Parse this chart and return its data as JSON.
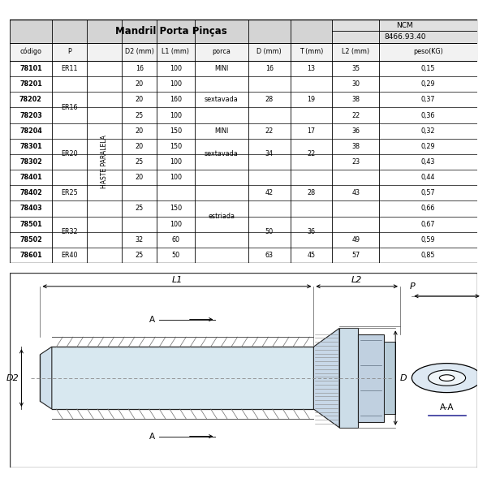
{
  "title": "Mandril Porta Pinças",
  "ncm_label": "NCM",
  "ncm_value": "8466.93.40",
  "bg_color": "#ffffff",
  "rows": [
    {
      "codigo": "78101",
      "P": "ER11",
      "D2": "16",
      "L1": "100",
      "porca": "MINI",
      "D": "16",
      "T": "13",
      "L2": "35",
      "peso": "0,15"
    },
    {
      "codigo": "78201",
      "P": "",
      "D2": "20",
      "L1": "100",
      "porca": "",
      "D": "",
      "T": "",
      "L2": "30",
      "peso": "0,29"
    },
    {
      "codigo": "78202",
      "P": "ER16",
      "D2": "20",
      "L1": "160",
      "porca": "sextavada",
      "D": "28",
      "T": "19",
      "L2": "38",
      "peso": "0,37"
    },
    {
      "codigo": "78203",
      "P": "",
      "D2": "25",
      "L1": "100",
      "porca": "",
      "D": "",
      "T": "",
      "L2": "22",
      "peso": "0,36"
    },
    {
      "codigo": "78204",
      "P": "",
      "D2": "20",
      "L1": "150",
      "porca": "MINI",
      "D": "22",
      "T": "17",
      "L2": "36",
      "peso": "0,32"
    },
    {
      "codigo": "78301",
      "P": "ER20",
      "D2": "20",
      "L1": "150",
      "porca": "",
      "D": "",
      "T": "",
      "L2": "38",
      "peso": "0,29"
    },
    {
      "codigo": "78302",
      "P": "",
      "D2": "25",
      "L1": "100",
      "porca": "sextavada",
      "D": "34",
      "T": "22",
      "L2": "23",
      "peso": "0,43"
    },
    {
      "codigo": "78401",
      "P": "",
      "D2": "20",
      "L1": "100",
      "porca": "",
      "D": "",
      "T": "",
      "L2": "",
      "peso": "0,44"
    },
    {
      "codigo": "78402",
      "P": "ER25",
      "D2": "",
      "L1": "",
      "porca": "",
      "D": "42",
      "T": "28",
      "L2": "43",
      "peso": "0,57"
    },
    {
      "codigo": "78403",
      "P": "",
      "D2": "25",
      "L1": "150",
      "porca": "estriada",
      "D": "",
      "T": "",
      "L2": "",
      "peso": "0,66"
    },
    {
      "codigo": "78501",
      "P": "ER32",
      "D2": "",
      "L1": "100",
      "porca": "",
      "D": "",
      "T": "",
      "L2": "",
      "peso": "0,67"
    },
    {
      "codigo": "78502",
      "P": "",
      "D2": "32",
      "L1": "60",
      "porca": "",
      "D": "50",
      "T": "36",
      "L2": "49",
      "peso": "0,59"
    },
    {
      "codigo": "78601",
      "P": "ER40",
      "D2": "25",
      "L1": "50",
      "porca": "",
      "D": "63",
      "T": "45",
      "L2": "57",
      "peso": "0,85"
    }
  ],
  "p_groups": [
    [
      0,
      0,
      "ER11"
    ],
    [
      1,
      4,
      "ER16"
    ],
    [
      5,
      6,
      "ER20"
    ],
    [
      7,
      9,
      "ER25"
    ],
    [
      10,
      11,
      "ER32"
    ],
    [
      12,
      12,
      "ER40"
    ]
  ],
  "porca_groups": [
    [
      0,
      0,
      "MINI"
    ],
    [
      1,
      3,
      "sextavada"
    ],
    [
      4,
      4,
      "MINI"
    ],
    [
      5,
      6,
      "sextavada"
    ],
    [
      7,
      12,
      "estriada"
    ]
  ],
  "dt_groups": [
    [
      0,
      0,
      "16",
      "13"
    ],
    [
      1,
      3,
      "28",
      "19"
    ],
    [
      4,
      4,
      "22",
      "17"
    ],
    [
      5,
      6,
      "34",
      "22"
    ],
    [
      7,
      9,
      "42",
      "28"
    ],
    [
      10,
      11,
      "50",
      "36"
    ],
    [
      12,
      12,
      "63",
      "45"
    ]
  ],
  "l2_groups": [
    [
      0,
      0,
      "35"
    ],
    [
      1,
      1,
      "30"
    ],
    [
      2,
      2,
      "38"
    ],
    [
      3,
      3,
      "22"
    ],
    [
      4,
      4,
      "36"
    ],
    [
      5,
      5,
      "38"
    ],
    [
      6,
      6,
      "23"
    ],
    [
      7,
      7,
      ""
    ],
    [
      8,
      8,
      "43"
    ],
    [
      9,
      9,
      ""
    ],
    [
      10,
      10,
      ""
    ],
    [
      11,
      11,
      "49"
    ],
    [
      12,
      12,
      "57"
    ]
  ]
}
